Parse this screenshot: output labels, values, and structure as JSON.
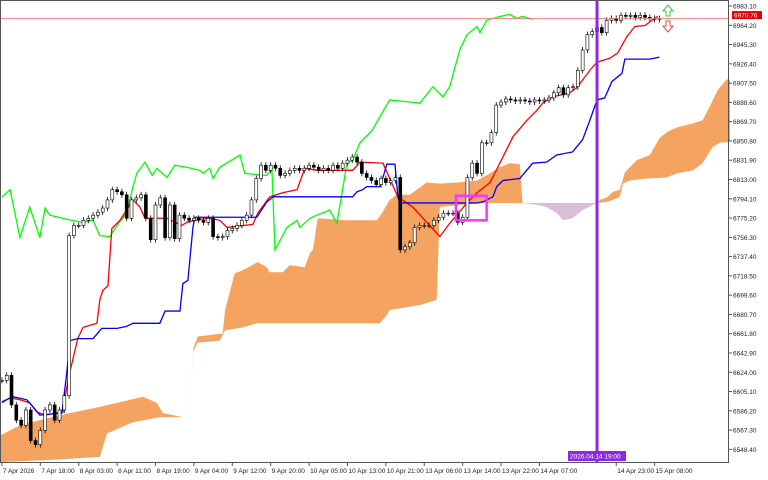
{
  "chart_data": {
    "type": "candlestick",
    "indicator": "ichimoku",
    "ylim": [
      6536,
      6989
    ],
    "xlim": [
      -0.4,
      151.5
    ],
    "grid": false,
    "colors": {
      "bull_candle": "#ffffff",
      "bear_candle": "#000000",
      "tenkan": "#ff0000",
      "kijun": "#0000ff",
      "chikou": "#00ff00",
      "cloud_bullish": "#f4a460",
      "cloud_bearish": "#d8bfd8",
      "price_line": "#f08080",
      "price_label": "#e00000",
      "cursor_line": "#8a2be2",
      "selection_box": "#ff33ff",
      "buy_arrow": "#33cc33",
      "sell_arrow": "#ff4444"
    },
    "price_ticks": [
      "6983.10",
      "6964.20",
      "6945.30",
      "6926.40",
      "6907.50",
      "6888.60",
      "6869.70",
      "6850.80",
      "6831.90",
      "6813.00",
      "6794.10",
      "6775.20",
      "6756.30",
      "6737.40",
      "6718.50",
      "6699.60",
      "6680.70",
      "6661.80",
      "6642.90",
      "6624.00",
      "6605.10",
      "6586.20",
      "6567.30",
      "6548.40"
    ],
    "time_ticks": [
      {
        "label": "7 Apr 2026",
        "bar": 0
      },
      {
        "label": "7 Apr 18:00",
        "bar": 8
      },
      {
        "label": "8 Apr 03:00",
        "bar": 16
      },
      {
        "label": "8 Apr 11:00",
        "bar": 24
      },
      {
        "label": "8 Apr 19:00",
        "bar": 32
      },
      {
        "label": "9 Apr 04:00",
        "bar": 40
      },
      {
        "label": "9 Apr 12:00",
        "bar": 48
      },
      {
        "label": "9 Apr 20:00",
        "bar": 56
      },
      {
        "label": "10 Apr 05:00",
        "bar": 64
      },
      {
        "label": "10 Apr 13:00",
        "bar": 72
      },
      {
        "label": "10 Apr 21:00",
        "bar": 80
      },
      {
        "label": "13 Apr 06:00",
        "bar": 88
      },
      {
        "label": "13 Apr 14:00",
        "bar": 96
      },
      {
        "label": "13 Apr 22:00",
        "bar": 104
      },
      {
        "label": "14 Apr 07:00",
        "bar": 112
      },
      {
        "label": "14 Apr 23:00",
        "bar": 128
      },
      {
        "label": "15 Apr 08:00",
        "bar": 136
      }
    ],
    "current_price": {
      "value": 6970.76,
      "label": "6970.76"
    },
    "cursor": {
      "bar": 124,
      "label": "2026.04.14 19:00"
    },
    "selection_box": {
      "bar_from": 94.6,
      "bar_to": 101,
      "price_high": 6797,
      "price_low": 6773
    },
    "closes": [
      6616,
      6621,
      6592,
      6577,
      6572,
      6587,
      6557,
      6553,
      6567,
      6587,
      6592,
      6577,
      6587,
      6601,
      6758,
      6768,
      6768,
      6773,
      6775,
      6778,
      6781,
      6785,
      6793,
      6803,
      6801,
      6798,
      6775,
      6793,
      6795,
      6798,
      6775,
      6754,
      6788,
      6795,
      6756,
      6788,
      6755,
      6778,
      6775,
      6773,
      6775,
      6773,
      6771,
      6775,
      6757,
      6756,
      6757,
      6763,
      6765,
      6768,
      6773,
      6778,
      6793,
      6814,
      6827,
      6822,
      6827,
      6824,
      6817,
      6819,
      6822,
      6824,
      6822,
      6824,
      6827,
      6825,
      6822,
      6824,
      6822,
      6827,
      6824,
      6829,
      6832,
      6835,
      6830,
      6819,
      6815,
      6812,
      6808,
      6814,
      6810,
      6812,
      6815,
      6744,
      6747,
      6751,
      6766,
      6768,
      6768,
      6768,
      6773,
      6776,
      6780,
      6780,
      6780,
      6771,
      6776,
      6815,
      6829,
      6819,
      6849,
      6849,
      6859,
      6886,
      6889,
      6892,
      6891,
      6890,
      6891,
      6890,
      6889,
      6891,
      6890,
      6891,
      6893,
      6898,
      6903,
      6896,
      6903,
      6904,
      6920,
      6940,
      6955,
      6958,
      6962,
      6957,
      6969,
      6971,
      6969,
      6974,
      6973,
      6974,
      6972,
      6974,
      6972,
      6971,
      6970,
      6970.76
    ],
    "series": {
      "chikou": [
        [
          0,
          6796
        ],
        [
          1.7,
          6803
        ],
        [
          3.75,
          6756
        ],
        [
          5.8,
          6786
        ],
        [
          7.9,
          6756
        ],
        [
          9,
          6785
        ],
        [
          10,
          6778
        ],
        [
          13.5,
          6774
        ],
        [
          16.9,
          6771
        ],
        [
          19,
          6773
        ],
        [
          20.4,
          6758
        ],
        [
          22.5,
          6757
        ],
        [
          24,
          6768
        ],
        [
          26,
          6780
        ],
        [
          27.3,
          6806
        ],
        [
          28.1,
          6819
        ],
        [
          29.8,
          6830
        ],
        [
          31.3,
          6817
        ],
        [
          32.3,
          6824
        ],
        [
          34.4,
          6815
        ],
        [
          36,
          6827
        ],
        [
          38.5,
          6825
        ],
        [
          41.25,
          6822
        ],
        [
          41.9,
          6819
        ],
        [
          43.3,
          6824
        ],
        [
          44,
          6814
        ],
        [
          45.4,
          6825
        ],
        [
          49.6,
          6837
        ],
        [
          50.6,
          6819
        ],
        [
          55.2,
          6817
        ],
        [
          56.25,
          6824
        ],
        [
          56.9,
          6744
        ],
        [
          59.4,
          6766
        ],
        [
          61.5,
          6773
        ],
        [
          62.1,
          6766
        ],
        [
          64.2,
          6775
        ],
        [
          65.6,
          6778
        ],
        [
          68.3,
          6783
        ],
        [
          69.8,
          6770
        ],
        [
          71.9,
          6829
        ],
        [
          73.1,
          6832
        ],
        [
          74.6,
          6849
        ],
        [
          77.1,
          6861
        ],
        [
          80.8,
          6891
        ],
        [
          85,
          6889
        ],
        [
          87.1,
          6888
        ],
        [
          89.8,
          6904
        ],
        [
          91.9,
          6894
        ],
        [
          93.3,
          6904
        ],
        [
          95.4,
          6940
        ],
        [
          96.9,
          6955
        ],
        [
          99,
          6963
        ],
        [
          99.6,
          6957
        ],
        [
          101,
          6969
        ],
        [
          103.1,
          6972
        ],
        [
          105.8,
          6975
        ],
        [
          107.3,
          6971
        ],
        [
          108.5,
          6973
        ],
        [
          110.6,
          6970
        ]
      ],
      "tenkan": [
        [
          0,
          6594
        ],
        [
          1.7,
          6599
        ],
        [
          3.75,
          6597
        ],
        [
          5.8,
          6594
        ],
        [
          7.3,
          6585
        ],
        [
          9,
          6582
        ],
        [
          12.7,
          6585
        ],
        [
          13.75,
          6616
        ],
        [
          15.8,
          6657
        ],
        [
          16.9,
          6668
        ],
        [
          19.8,
          6672
        ],
        [
          20.4,
          6695
        ],
        [
          21,
          6704
        ],
        [
          22.1,
          6709
        ],
        [
          22.9,
          6765
        ],
        [
          24.6,
          6773
        ],
        [
          26,
          6783
        ],
        [
          27.3,
          6793
        ],
        [
          28.75,
          6786
        ],
        [
          29.8,
          6775
        ],
        [
          34.4,
          6775
        ],
        [
          37.5,
          6768
        ],
        [
          38.5,
          6771
        ],
        [
          41.25,
          6774
        ],
        [
          43.3,
          6775
        ],
        [
          45.4,
          6773
        ],
        [
          46.9,
          6766
        ],
        [
          52.3,
          6769
        ],
        [
          53.3,
          6780
        ],
        [
          55.8,
          6796
        ],
        [
          58.5,
          6800
        ],
        [
          61.5,
          6803
        ],
        [
          63.1,
          6824
        ],
        [
          65.6,
          6822
        ],
        [
          73.1,
          6822
        ],
        [
          74.6,
          6830
        ],
        [
          79.4,
          6829
        ],
        [
          82.5,
          6796
        ],
        [
          85.6,
          6786
        ],
        [
          91.25,
          6757
        ],
        [
          93.3,
          6770
        ],
        [
          96.9,
          6790
        ],
        [
          99,
          6800
        ],
        [
          101.7,
          6810
        ],
        [
          103.75,
          6829
        ],
        [
          106.5,
          6855
        ],
        [
          109.4,
          6871
        ],
        [
          111.5,
          6881
        ],
        [
          112.7,
          6888
        ],
        [
          114.8,
          6894
        ],
        [
          118.3,
          6898
        ],
        [
          119.8,
          6903
        ],
        [
          122.5,
          6920
        ],
        [
          124,
          6928
        ],
        [
          126.7,
          6932
        ],
        [
          128.3,
          6937
        ],
        [
          130.2,
          6953
        ],
        [
          131.9,
          6963
        ],
        [
          134,
          6964
        ],
        [
          135.4,
          6969
        ],
        [
          136.7,
          6973
        ]
      ],
      "kijun": [
        [
          0,
          6595
        ],
        [
          2.3,
          6600
        ],
        [
          5.2,
          6597
        ],
        [
          6.5,
          6590
        ],
        [
          7.9,
          6582
        ],
        [
          12.5,
          6584
        ],
        [
          13.5,
          6623
        ],
        [
          14.2,
          6655
        ],
        [
          15.8,
          6657
        ],
        [
          19,
          6657
        ],
        [
          20.8,
          6667
        ],
        [
          24,
          6667
        ],
        [
          26,
          6669
        ],
        [
          27.3,
          6672
        ],
        [
          32.9,
          6672
        ],
        [
          34,
          6684
        ],
        [
          37.1,
          6684
        ],
        [
          37.7,
          6711
        ],
        [
          38.75,
          6714
        ],
        [
          39.8,
          6766
        ],
        [
          40.2,
          6776
        ],
        [
          53.1,
          6776
        ],
        [
          55.2,
          6791
        ],
        [
          56.5,
          6796
        ],
        [
          73.1,
          6796
        ],
        [
          74,
          6801
        ],
        [
          75.2,
          6803
        ],
        [
          76,
          6806
        ],
        [
          78.75,
          6806
        ],
        [
          79.4,
          6815
        ],
        [
          80.2,
          6828
        ],
        [
          81.9,
          6828
        ],
        [
          82.5,
          6796
        ],
        [
          82.9,
          6790
        ],
        [
          99,
          6790
        ],
        [
          100.2,
          6791
        ],
        [
          102.3,
          6796
        ],
        [
          103.1,
          6806
        ],
        [
          104.4,
          6812
        ],
        [
          107.9,
          6814
        ],
        [
          110.6,
          6829
        ],
        [
          113.5,
          6830
        ],
        [
          115.6,
          6837
        ],
        [
          118.9,
          6840
        ],
        [
          121,
          6852
        ],
        [
          122.5,
          6871
        ],
        [
          124,
          6891
        ],
        [
          125.6,
          6893
        ],
        [
          127.1,
          6909
        ],
        [
          129.2,
          6917
        ],
        [
          129.8,
          6931
        ],
        [
          135,
          6931
        ],
        [
          137,
          6933
        ]
      ]
    },
    "cloud": [
      {
        "kind": "bullish",
        "upper": [
          [
            -0.4,
            6562
          ],
          [
            3.75,
            6572
          ],
          [
            7.9,
            6577
          ],
          [
            12.1,
            6582
          ],
          [
            20.4,
            6590
          ],
          [
            29.4,
            6600
          ],
          [
            32.3,
            6594
          ],
          [
            33.5,
            6584
          ],
          [
            37.7,
            6580
          ],
          [
            39.2,
            6580
          ],
          [
            39.8,
            6646
          ],
          [
            40.8,
            6659
          ],
          [
            46,
            6662
          ],
          [
            46.5,
            6685
          ],
          [
            48.5,
            6721
          ],
          [
            50.2,
            6724
          ],
          [
            53.3,
            6732
          ],
          [
            55.2,
            6727
          ],
          [
            55.8,
            6722
          ],
          [
            58.5,
            6722
          ],
          [
            60,
            6729
          ],
          [
            63.1,
            6727
          ],
          [
            64.2,
            6741
          ],
          [
            64.8,
            6744
          ],
          [
            65.8,
            6775
          ],
          [
            71.9,
            6773
          ],
          [
            78.1,
            6773
          ],
          [
            79.2,
            6780
          ],
          [
            80.8,
            6793
          ],
          [
            82.3,
            6798
          ],
          [
            85,
            6798
          ],
          [
            88.5,
            6810
          ],
          [
            91.25,
            6809
          ],
          [
            94.8,
            6810
          ],
          [
            99,
            6812
          ],
          [
            101.7,
            6819
          ],
          [
            103.75,
            6825
          ],
          [
            105.8,
            6829
          ],
          [
            107.9,
            6828
          ],
          [
            108.5,
            6790
          ]
        ],
        "lower": [
          [
            -0.4,
            6536
          ],
          [
            10,
            6538
          ],
          [
            20.4,
            6541
          ],
          [
            21.9,
            6564
          ],
          [
            27.3,
            6575
          ],
          [
            32.9,
            6580
          ],
          [
            39.2,
            6580
          ],
          [
            39.8,
            6644
          ],
          [
            40.8,
            6653
          ],
          [
            45.4,
            6655
          ],
          [
            46.5,
            6665
          ],
          [
            50.2,
            6668
          ],
          [
            53.1,
            6672
          ],
          [
            78.75,
            6672
          ],
          [
            80.2,
            6680
          ],
          [
            80.8,
            6685
          ],
          [
            87.1,
            6690
          ],
          [
            90.6,
            6695
          ],
          [
            91.25,
            6786
          ],
          [
            99.6,
            6790
          ],
          [
            108.5,
            6790
          ]
        ]
      },
      {
        "kind": "bearish",
        "upper": [
          [
            108.5,
            6790
          ],
          [
            124,
            6790
          ]
        ],
        "lower": [
          [
            108.5,
            6790
          ],
          [
            111.5,
            6788
          ],
          [
            113.5,
            6786
          ],
          [
            115.6,
            6780
          ],
          [
            116.9,
            6773
          ],
          [
            118.9,
            6775
          ],
          [
            121,
            6783
          ],
          [
            123.1,
            6788
          ],
          [
            124,
            6790
          ]
        ]
      },
      {
        "kind": "bullish",
        "upper": [
          [
            124,
            6790
          ],
          [
            124.6,
            6793
          ],
          [
            126.25,
            6796
          ],
          [
            127.3,
            6801
          ],
          [
            128.75,
            6803
          ],
          [
            129.8,
            6820
          ],
          [
            132.3,
            6832
          ],
          [
            135,
            6837
          ],
          [
            137.1,
            6854
          ],
          [
            138.75,
            6860
          ],
          [
            140.6,
            6864
          ],
          [
            144,
            6868
          ],
          [
            146,
            6871
          ],
          [
            147.1,
            6881
          ],
          [
            149.2,
            6901
          ],
          [
            151,
            6911
          ],
          [
            151.7,
            6911
          ]
        ],
        "lower": [
          [
            124,
            6790
          ],
          [
            126,
            6791
          ],
          [
            127.3,
            6793
          ],
          [
            128.75,
            6796
          ],
          [
            129.4,
            6809
          ],
          [
            130.8,
            6812
          ],
          [
            134.4,
            6814
          ],
          [
            138.5,
            6815
          ],
          [
            140.6,
            6819
          ],
          [
            144,
            6822
          ],
          [
            146,
            6829
          ],
          [
            148.1,
            6845
          ],
          [
            149.6,
            6849
          ],
          [
            151.7,
            6850
          ]
        ]
      }
    ]
  }
}
